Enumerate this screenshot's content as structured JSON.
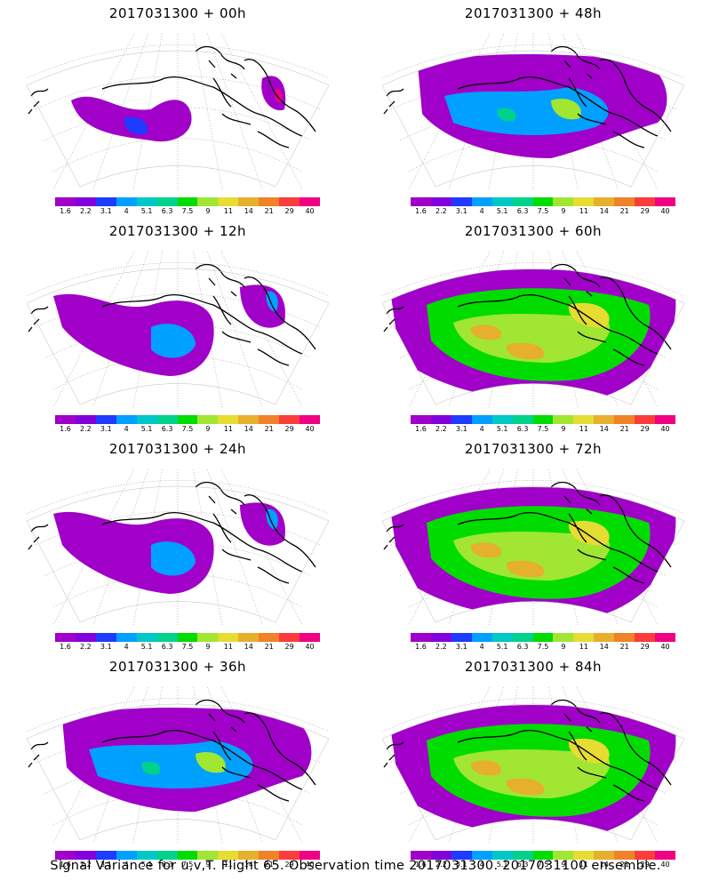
{
  "panels": [
    {
      "title": "2017031300  +  00h",
      "level": 0
    },
    {
      "title": "2017031300  +  48h",
      "level": 2
    },
    {
      "title": "2017031300  +  12h",
      "level": 1
    },
    {
      "title": "2017031300  +  60h",
      "level": 3
    },
    {
      "title": "2017031300  +  24h",
      "level": 1
    },
    {
      "title": "2017031300  +  72h",
      "level": 3
    },
    {
      "title": "2017031300  +  36h",
      "level": 2
    },
    {
      "title": "2017031300  +  84h",
      "level": 3
    }
  ],
  "colorbar": {
    "labels": [
      "1.6",
      "2.2",
      "3.1",
      "4",
      "5.1",
      "6.3",
      "7.5",
      "9",
      "11",
      "14",
      "21",
      "29",
      "40"
    ],
    "colors": [
      "#a000c8",
      "#8200dc",
      "#1e3cff",
      "#00a0ff",
      "#00c8c8",
      "#00d28c",
      "#00dc00",
      "#a0e632",
      "#e6dc32",
      "#e6af2d",
      "#f08228",
      "#fa3c3c",
      "#f00082"
    ]
  },
  "caption": "Signal Variance for u,v,T. Flight 65. Observation time 2017031300. 2017031100 ensemble."
}
